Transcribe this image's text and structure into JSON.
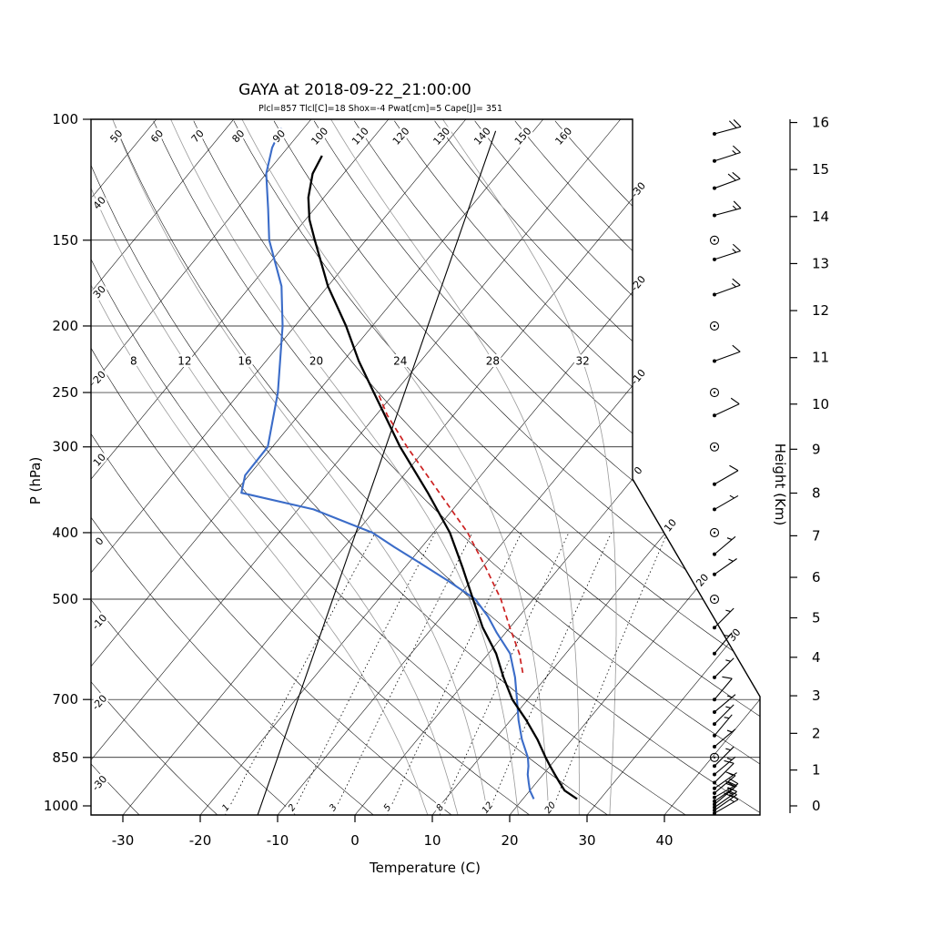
{
  "chart_data": {
    "type": "skewt-log-p",
    "title": "GAYA at 2018-09-22_21:00:00",
    "params_line": "Plcl=857 Tlcl[C]=18 Shox=-4 Pwat[cm]=5 Cape[J]= 351",
    "xlabel": "Temperature (C)",
    "ylabel": "P (hPa)",
    "y2label": "Height (Km)",
    "pressure_ticks": [
      100,
      150,
      200,
      250,
      300,
      400,
      500,
      700,
      850,
      1000
    ],
    "pressure_gridlines": [
      150,
      200,
      250,
      300,
      400,
      500,
      700,
      850
    ],
    "temp_ticks": [
      -30,
      -20,
      -10,
      0,
      10,
      20,
      30,
      40
    ],
    "height_ticks_km": [
      0,
      1,
      2,
      3,
      4,
      5,
      6,
      7,
      8,
      9,
      10,
      11,
      12,
      13,
      14,
      15,
      16
    ],
    "isotherms": {
      "min": -110,
      "max": 40,
      "step": 10
    },
    "isotherm_edge_labels": [
      -30,
      -20,
      -10,
      0,
      10,
      20,
      30
    ],
    "dry_adiabats": {
      "min": -30,
      "max": 160,
      "step": 10,
      "top_labels": [
        50,
        60,
        70,
        80,
        90,
        100,
        110,
        120,
        130,
        140,
        150,
        160
      ],
      "left_labels": [
        40,
        30,
        20,
        10,
        0,
        -10,
        -20,
        -30
      ]
    },
    "moist_adiabats": [
      8,
      12,
      16,
      20,
      24,
      28,
      32
    ],
    "moist_label_pressure": 225,
    "mixing_ratio_lines": [
      1,
      2,
      3,
      5,
      8,
      12,
      20
    ],
    "series": {
      "temperature": {
        "p": [
          977,
          950,
          925,
          900,
          875,
          850,
          800,
          750,
          700,
          650,
          600,
          550,
          500,
          450,
          400,
          350,
          300,
          250,
          225,
          200,
          175,
          150,
          140,
          130,
          120,
          113
        ],
        "t": [
          27.0,
          24.5,
          23.0,
          21.5,
          20.0,
          18.5,
          15.5,
          12.0,
          8.0,
          4.5,
          1.0,
          -3.5,
          -7.8,
          -12.5,
          -17.9,
          -25.0,
          -33.5,
          -42.7,
          -48.0,
          -53.4,
          -60.0,
          -66.6,
          -69.5,
          -72.0,
          -74.0,
          -74.7
        ]
      },
      "dewpoint": {
        "p": [
          977,
          950,
          925,
          900,
          875,
          850,
          800,
          750,
          700,
          650,
          600,
          560,
          530,
          500,
          470,
          440,
          420,
          400,
          370,
          350,
          330,
          300,
          250,
          200,
          175,
          150,
          135,
          120,
          110,
          103
        ],
        "t": [
          21.4,
          20.0,
          19.0,
          18.0,
          17.2,
          16.2,
          13.5,
          11.0,
          8.6,
          6.0,
          2.8,
          -1.1,
          -4.0,
          -7.5,
          -13.0,
          -19.1,
          -23.5,
          -27.9,
          -38.0,
          -49.1,
          -50.5,
          -50.6,
          -55.1,
          -61.6,
          -66.0,
          -72.5,
          -76.0,
          -80.0,
          -82.0,
          -82.9
        ]
      },
      "parcel": {
        "p": [
          640,
          600,
          550,
          500,
          450,
          400,
          350,
          300,
          270,
          250
        ],
        "t": [
          6.5,
          4.0,
          0.0,
          -4.2,
          -9.5,
          -15.6,
          -23.5,
          -32.6,
          -38.5,
          -42.2
        ]
      },
      "aux_line": {
        "p": [
          1030,
          104
        ],
        "t": [
          -12.6,
          -54.9
        ]
      }
    },
    "wind_barbs": [
      {
        "p": 1025,
        "dir": 60,
        "spd": 15
      },
      {
        "p": 1015,
        "dir": 55,
        "spd": 20
      },
      {
        "p": 1005,
        "dir": 55,
        "spd": 15
      },
      {
        "p": 995,
        "dir": 50,
        "spd": 15
      },
      {
        "p": 985,
        "dir": 55,
        "spd": 10
      },
      {
        "p": 972,
        "dir": 60,
        "spd": 20
      },
      {
        "p": 958,
        "dir": 50,
        "spd": 10
      },
      {
        "p": 943,
        "dir": 55,
        "spd": 5
      },
      {
        "p": 925,
        "dir": 45,
        "spd": 10
      },
      {
        "p": 900,
        "dir": 50,
        "spd": 5
      },
      {
        "p": 875,
        "dir": 45,
        "spd": 5
      },
      {
        "p": 850,
        "dir": 0,
        "spd": 0
      },
      {
        "p": 820,
        "dir": 50,
        "spd": 5
      },
      {
        "p": 790,
        "dir": 40,
        "spd": 5
      },
      {
        "p": 760,
        "dir": 45,
        "spd": 5
      },
      {
        "p": 730,
        "dir": 50,
        "spd": 5
      },
      {
        "p": 700,
        "dir": 40,
        "spd": 10
      },
      {
        "p": 650,
        "dir": 45,
        "spd": 5
      },
      {
        "p": 600,
        "dir": 40,
        "spd": 5
      },
      {
        "p": 550,
        "dir": 45,
        "spd": 5
      },
      {
        "p": 500,
        "dir": 0,
        "spd": 0
      },
      {
        "p": 460,
        "dir": 55,
        "spd": 5
      },
      {
        "p": 430,
        "dir": 50,
        "spd": 5
      },
      {
        "p": 400,
        "dir": 0,
        "spd": 0
      },
      {
        "p": 370,
        "dir": 60,
        "spd": 5
      },
      {
        "p": 340,
        "dir": 60,
        "spd": 10
      },
      {
        "p": 300,
        "dir": 0,
        "spd": 0
      },
      {
        "p": 270,
        "dir": 65,
        "spd": 10
      },
      {
        "p": 250,
        "dir": 0,
        "spd": 0
      },
      {
        "p": 225,
        "dir": 70,
        "spd": 10
      },
      {
        "p": 200,
        "dir": 0,
        "spd": 0
      },
      {
        "p": 180,
        "dir": 70,
        "spd": 15
      },
      {
        "p": 160,
        "dir": 72,
        "spd": 15
      },
      {
        "p": 150,
        "dir": 0,
        "spd": 0
      },
      {
        "p": 138,
        "dir": 75,
        "spd": 15
      },
      {
        "p": 126,
        "dir": 70,
        "spd": 20
      },
      {
        "p": 115,
        "dir": 72,
        "spd": 15
      },
      {
        "p": 105,
        "dir": 75,
        "spd": 20
      }
    ],
    "colors": {
      "temperature": "#000000",
      "dewpoint": "#3b6cc8",
      "parcel": "#cc2020",
      "params_text": "#ae3d20",
      "moist_adiabat": "#999999",
      "grid": "#000000"
    }
  }
}
